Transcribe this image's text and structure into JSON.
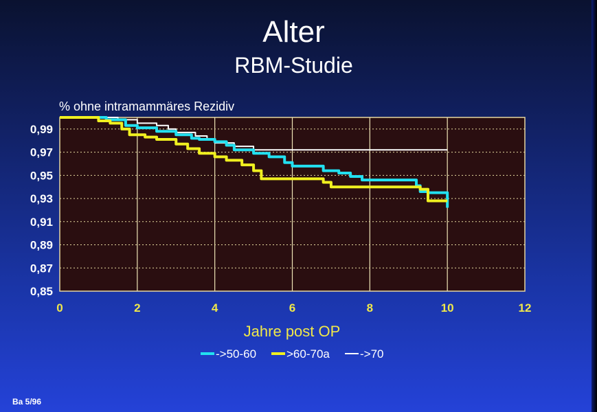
{
  "title": "Alter",
  "subtitle": "RBM-Studie",
  "footnote": "Ba 5/96",
  "chart_data": {
    "type": "line",
    "ylabel": "% ohne intramammäres Rezidiv",
    "xlabel": "Jahre post OP",
    "xlim": [
      0,
      12
    ],
    "ylim": [
      0.85,
      1.0
    ],
    "xticks": [
      0,
      2,
      4,
      6,
      8,
      10,
      12
    ],
    "xtick_labels": [
      "0",
      "2",
      "4",
      "6",
      "8",
      "10",
      "12"
    ],
    "yticks": [
      0.85,
      0.87,
      0.89,
      0.91,
      0.93,
      0.95,
      0.97,
      0.99
    ],
    "ytick_labels": [
      "0,85",
      "0,87",
      "0,89",
      "0,91",
      "0,93",
      "0,95",
      "0,97",
      "0,99"
    ],
    "grid": true,
    "legend_position": "bottom-center",
    "plot_background": "#2a0e10",
    "series": [
      {
        "name": "->50-60",
        "color": "#22e0f0",
        "step": true,
        "points": [
          [
            0,
            1.0
          ],
          [
            1.2,
            0.998
          ],
          [
            1.7,
            0.993
          ],
          [
            2.0,
            0.991
          ],
          [
            2.5,
            0.988
          ],
          [
            3.0,
            0.985
          ],
          [
            3.4,
            0.982
          ],
          [
            3.6,
            0.981
          ],
          [
            4.0,
            0.979
          ],
          [
            4.3,
            0.976
          ],
          [
            4.5,
            0.972
          ],
          [
            5.0,
            0.969
          ],
          [
            5.4,
            0.966
          ],
          [
            5.8,
            0.961
          ],
          [
            6.0,
            0.958
          ],
          [
            6.8,
            0.954
          ],
          [
            7.2,
            0.952
          ],
          [
            7.5,
            0.949
          ],
          [
            7.8,
            0.946
          ],
          [
            9.2,
            0.941
          ],
          [
            9.3,
            0.936
          ],
          [
            9.5,
            0.935
          ],
          [
            9.9,
            0.935
          ],
          [
            10.0,
            0.922
          ]
        ]
      },
      {
        "name": ">60-70a",
        "color": "#f0f020",
        "step": true,
        "points": [
          [
            0,
            1.0
          ],
          [
            1.0,
            0.997
          ],
          [
            1.3,
            0.995
          ],
          [
            1.6,
            0.99
          ],
          [
            1.8,
            0.985
          ],
          [
            2.2,
            0.983
          ],
          [
            2.5,
            0.981
          ],
          [
            3.0,
            0.977
          ],
          [
            3.3,
            0.973
          ],
          [
            3.6,
            0.969
          ],
          [
            4.0,
            0.966
          ],
          [
            4.3,
            0.963
          ],
          [
            4.7,
            0.959
          ],
          [
            5.0,
            0.954
          ],
          [
            5.2,
            0.947
          ],
          [
            6.8,
            0.944
          ],
          [
            7.0,
            0.94
          ],
          [
            9.3,
            0.938
          ],
          [
            9.5,
            0.928
          ],
          [
            10.0,
            0.928
          ]
        ]
      },
      {
        "name": "->70",
        "color": "#ffffff",
        "step": true,
        "points": [
          [
            0,
            1.0
          ],
          [
            1.5,
            0.998
          ],
          [
            2.0,
            0.995
          ],
          [
            2.5,
            0.993
          ],
          [
            2.8,
            0.99
          ],
          [
            3.0,
            0.987
          ],
          [
            3.5,
            0.984
          ],
          [
            3.8,
            0.981
          ],
          [
            4.0,
            0.978
          ],
          [
            4.5,
            0.975
          ],
          [
            5.0,
            0.972
          ],
          [
            10.0,
            0.972
          ]
        ]
      }
    ]
  }
}
